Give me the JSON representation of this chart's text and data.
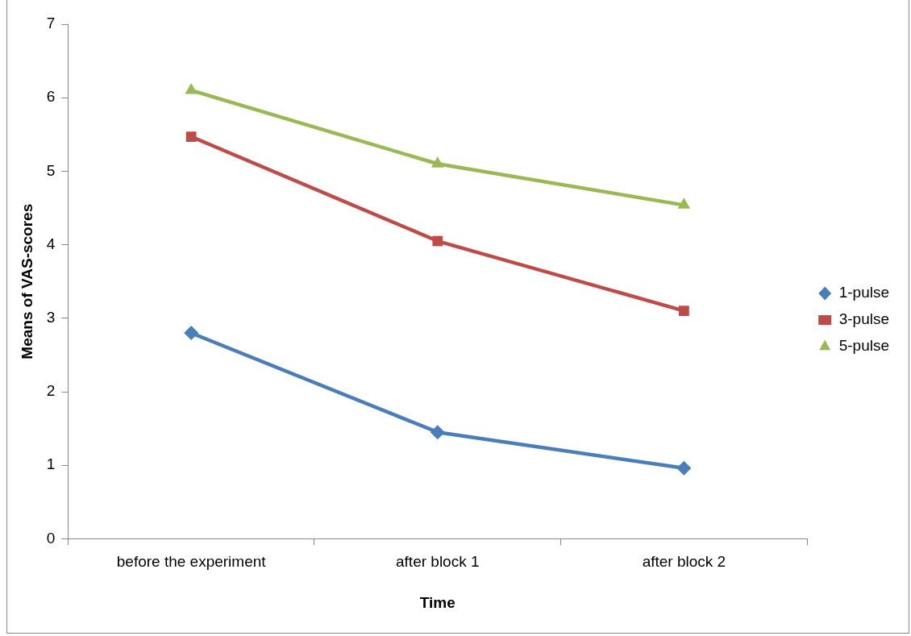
{
  "chart_data": {
    "type": "line",
    "xlabel": "Time",
    "ylabel": "Means of VAS-scores",
    "categories": [
      "before the experiment",
      "after block 1",
      "after block 2"
    ],
    "series": [
      {
        "name": "1-pulse",
        "color": "#4a7ebb",
        "marker": "diamond",
        "values": [
          2.8,
          1.45,
          0.96
        ]
      },
      {
        "name": "3-pulse",
        "color": "#be4b48",
        "marker": "square",
        "values": [
          5.47,
          4.05,
          3.1
        ]
      },
      {
        "name": "5-pulse",
        "color": "#98b954",
        "marker": "triangle",
        "values": [
          6.1,
          5.1,
          4.54
        ]
      }
    ],
    "ylim": [
      0,
      7
    ],
    "yticks": [
      0,
      1,
      2,
      3,
      4,
      5,
      6,
      7
    ],
    "grid": false,
    "legend": "right"
  }
}
